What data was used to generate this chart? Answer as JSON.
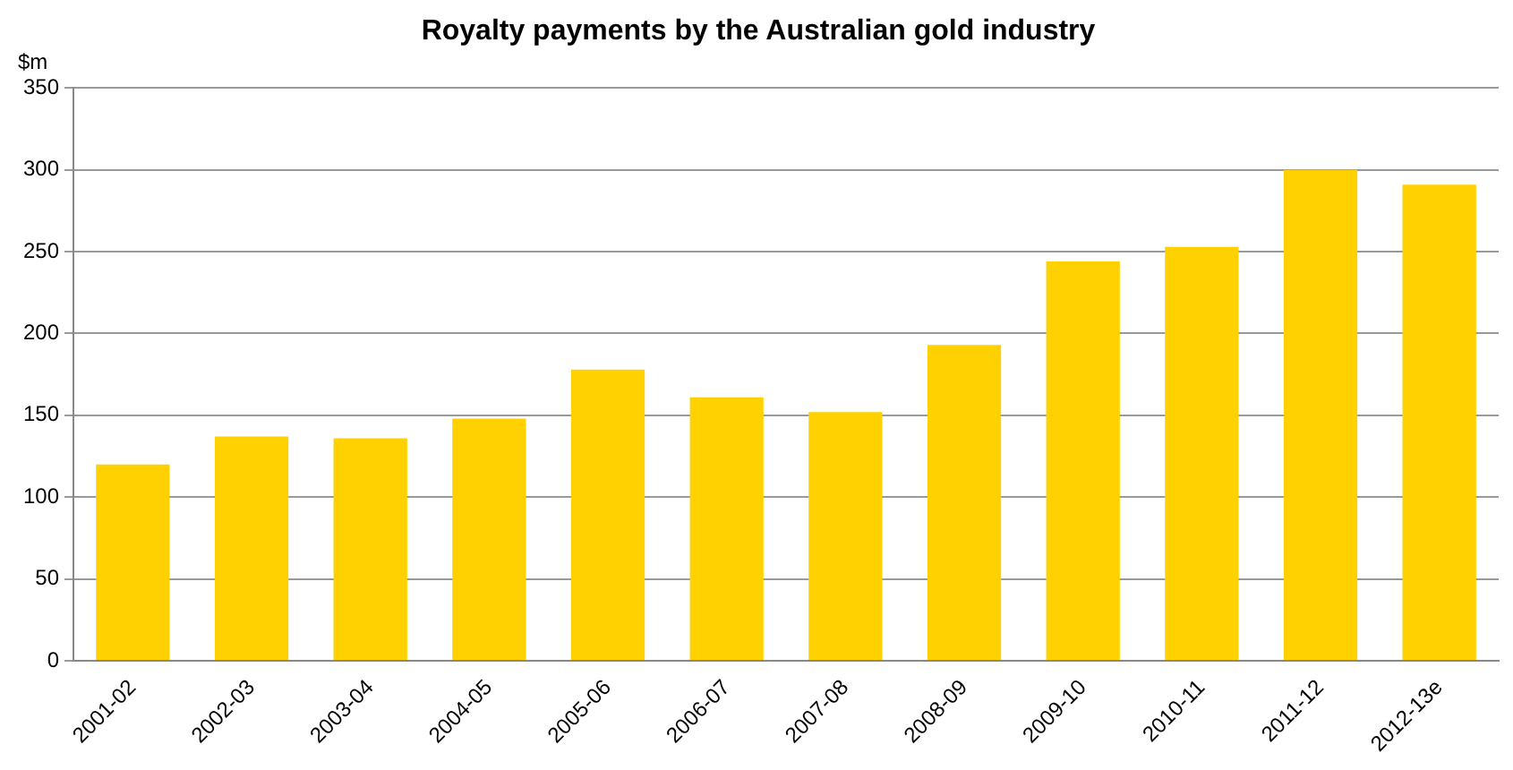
{
  "chart_data": {
    "type": "bar",
    "title": "Royalty payments by the Australian gold industry",
    "ylabel": "$m",
    "categories": [
      "2001-02",
      "2002-03",
      "2003-04",
      "2004-05",
      "2005-06",
      "2006-07",
      "2007-08",
      "2008-09",
      "2009-10",
      "2010-11",
      "2011-12",
      "2012-13e"
    ],
    "values": [
      120,
      137,
      136,
      148,
      178,
      161,
      152,
      193,
      244,
      253,
      300,
      291
    ],
    "color": "#ffd100",
    "ylim": [
      0,
      350
    ],
    "yticks": [
      0,
      50,
      100,
      150,
      200,
      250,
      300,
      350
    ],
    "grid": "y",
    "legend": false
  }
}
